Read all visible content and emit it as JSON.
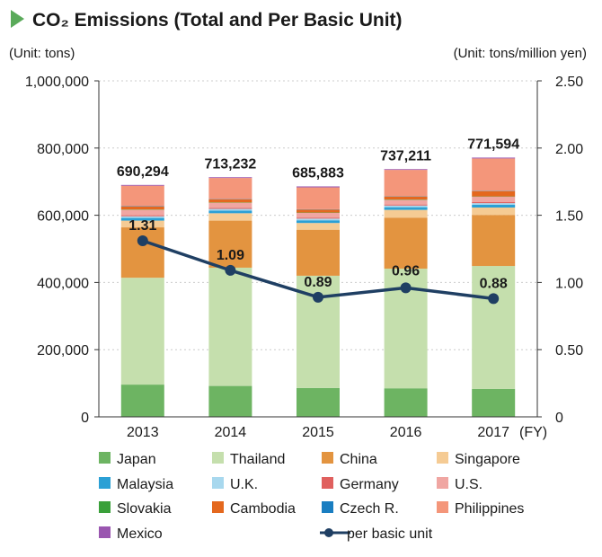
{
  "colors": {
    "title_marker": "#5aaa5a",
    "line": "#1f3f63",
    "gridline": "#cccccc"
  },
  "chart_data": {
    "type": "bar",
    "stacked": true,
    "title": "CO₂ Emissions (Total and Per Basic Unit)",
    "left_unit": "(Unit: tons)",
    "right_unit": "(Unit: tons/million yen)",
    "x_suffix": "(FY)",
    "categories": [
      "2013",
      "2014",
      "2015",
      "2016",
      "2017"
    ],
    "ylim": [
      0,
      1000000
    ],
    "y_ticks": [
      "0",
      "200,000",
      "400,000",
      "600,000",
      "800,000",
      "1,000,000"
    ],
    "y2lim": [
      0,
      2.5
    ],
    "y2_ticks": [
      "0",
      "0.50",
      "1.00",
      "1.50",
      "2.00",
      "2.50"
    ],
    "grid": "horizontal",
    "legend_position": "bottom",
    "totals": [
      690294,
      713232,
      685883,
      737211,
      771594
    ],
    "total_labels": [
      "690,294",
      "713,232",
      "685,883",
      "737,211",
      "771,594"
    ],
    "series": [
      {
        "name": "Japan",
        "color": "#6db462",
        "values": [
          96000,
          92000,
          86000,
          85000,
          83000
        ]
      },
      {
        "name": "Thailand",
        "color": "#c5dfad",
        "values": [
          318000,
          352000,
          334000,
          356000,
          366000
        ]
      },
      {
        "name": "China",
        "color": "#e39440",
        "values": [
          150000,
          140000,
          137000,
          152000,
          152000
        ]
      },
      {
        "name": "Singapore",
        "color": "#f5cb94",
        "values": [
          20000,
          22000,
          20000,
          23000,
          22000
        ]
      },
      {
        "name": "Malaysia",
        "color": "#2ba0d5",
        "values": [
          8000,
          8000,
          8000,
          8000,
          8000
        ]
      },
      {
        "name": "U.K.",
        "color": "#a8d8ee",
        "values": [
          5000,
          5000,
          5000,
          5000,
          5000
        ]
      },
      {
        "name": "Germany",
        "color": "#e0605e",
        "values": [
          3000,
          3000,
          3000,
          3000,
          3000
        ]
      },
      {
        "name": "U.S.",
        "color": "#f0a6a2",
        "values": [
          16000,
          15000,
          14000,
          14000,
          16000
        ]
      },
      {
        "name": "Slovakia",
        "color": "#3aa03a",
        "values": [
          1000,
          1000,
          1000,
          1000,
          1000
        ]
      },
      {
        "name": "Cambodia",
        "color": "#e4681e",
        "values": [
          9000,
          9000,
          9000,
          9000,
          16000
        ]
      },
      {
        "name": "Czech R.",
        "color": "#1a7ec1",
        "values": [
          1000,
          1000,
          1000,
          1000,
          1000
        ]
      },
      {
        "name": "Philippines",
        "color": "#f4967a",
        "values": [
          61000,
          63000,
          65000,
          78000,
          96000
        ]
      },
      {
        "name": "Mexico",
        "color": "#9a56b0",
        "values": [
          2294,
          2232,
          2883,
          2211,
          2594
        ]
      }
    ],
    "line": {
      "name": "per basic unit",
      "axis": "right",
      "values": [
        1.31,
        1.09,
        0.89,
        0.96,
        0.88
      ],
      "labels": [
        "1.31",
        "1.09",
        "0.89",
        "0.96",
        "0.88"
      ]
    }
  }
}
